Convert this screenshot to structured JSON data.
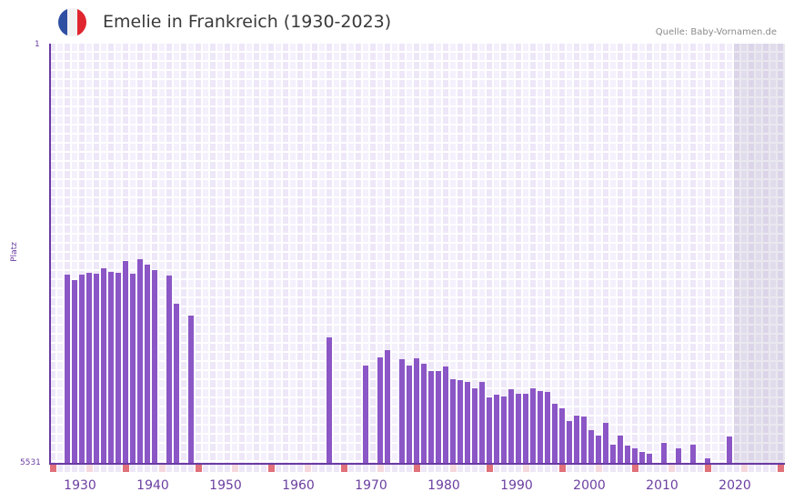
{
  "header": {
    "title": "Emelie in Frankreich (1930-2023)",
    "source": "Quelle: Baby-Vornamen.de",
    "flag": {
      "icon": "france-flag-icon",
      "colors": [
        "#2f4fa3",
        "#f2f2f2",
        "#e0252f"
      ]
    }
  },
  "axis": {
    "y_top_label": "1",
    "y_bottom_label": "5531",
    "y_title": "Platz",
    "x_tick_labels": [
      "1930",
      "1940",
      "1950",
      "1960",
      "1970",
      "1980",
      "1990",
      "2000",
      "2010",
      "2020"
    ]
  },
  "colors": {
    "bar": "#8b56c6",
    "axis": "#6a3aa2",
    "marker_decade": "#e0707a",
    "marker_half": "#f5d8de"
  },
  "chart_data": {
    "type": "bar",
    "title": "Emelie in Frankreich (1930-2023)",
    "xlabel": "",
    "ylabel": "Platz",
    "y_scale": "log",
    "y_inverted": true,
    "ylim": [
      1,
      5531
    ],
    "x_range": [
      1928,
      2028
    ],
    "future_shade_from": 2022,
    "grid": true,
    "legend": null,
    "annotations": [],
    "x": [
      1930,
      1931,
      1932,
      1933,
      1934,
      1935,
      1936,
      1937,
      1938,
      1939,
      1940,
      1941,
      1942,
      1944,
      1945,
      1947,
      1966,
      1971,
      1973,
      1974,
      1976,
      1977,
      1978,
      1979,
      1980,
      1981,
      1982,
      1983,
      1984,
      1985,
      1986,
      1987,
      1988,
      1989,
      1990,
      1991,
      1992,
      1993,
      1994,
      1995,
      1996,
      1997,
      1998,
      1999,
      2000,
      2001,
      2002,
      2003,
      2004,
      2005,
      2006,
      2007,
      2008,
      2009,
      2010,
      2012,
      2014,
      2016,
      2018,
      2021
    ],
    "values": [
      114,
      128,
      114,
      110,
      112,
      100,
      107,
      110,
      86,
      112,
      83,
      93,
      104,
      116,
      208,
      264,
      414,
      737,
      624,
      537,
      647,
      737,
      635,
      710,
      824,
      824,
      751,
      975,
      994,
      1032,
      1176,
      1032,
      1416,
      1339,
      1390,
      1197,
      1314,
      1314,
      1176,
      1243,
      1266,
      1614,
      1772,
      2302,
      2058,
      2097,
      2774,
      3100,
      2389,
      3737,
      3100,
      3808,
      4026,
      4337,
      4501,
      3601,
      4026,
      3737,
      4944,
      3159
    ]
  }
}
